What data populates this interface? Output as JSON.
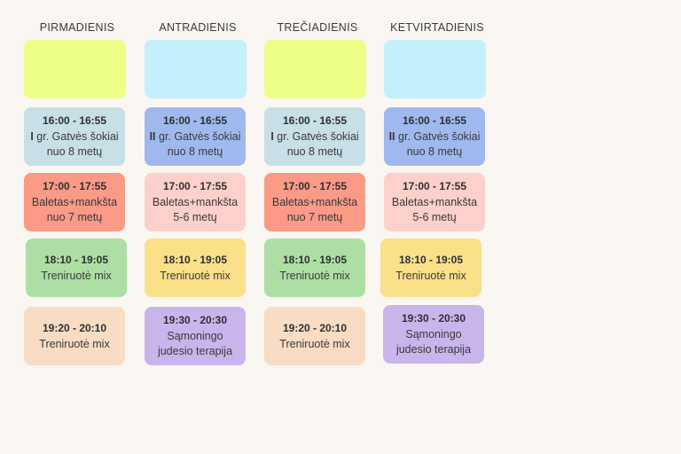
{
  "colors": {
    "yellow": "#eeff88",
    "cyan": "#c3f0fb",
    "light_blue": "#c7dfe6",
    "blue": "#9fb9ee",
    "salmon": "#fb9a87",
    "pink": "#fdd0cb",
    "green": "#addfa5",
    "gold": "#fbe08a",
    "peach": "#f8dcc3",
    "lavender": "#c9b5ec",
    "background": "#faf6f2"
  },
  "days": [
    {
      "name": "PIRMADIENIS",
      "header_color": "yellow",
      "classes": [
        {
          "time": "16:00 - 16:55",
          "roman": "I",
          "line1": " gr. Gatvės šokiai",
          "line2": "nuo 8 metų",
          "color": "light_blue"
        },
        {
          "time": "17:00 - 17:55",
          "roman": "",
          "line1": "Baletas+mankšta",
          "line2": "nuo 7 metų",
          "color": "salmon"
        },
        {
          "time": "18:10 - 19:05",
          "roman": "",
          "line1": "Treniruotė mix",
          "line2": "",
          "color": "green"
        },
        {
          "time": "19:20 - 20:10",
          "roman": "",
          "line1": "Treniruotė mix",
          "line2": "",
          "color": "peach"
        }
      ]
    },
    {
      "name": "ANTRADIENIS",
      "header_color": "cyan",
      "classes": [
        {
          "time": "16:00 - 16:55",
          "roman": "II",
          "line1": " gr. Gatvės šokiai",
          "line2": "nuo 8 metų",
          "color": "blue"
        },
        {
          "time": "17:00 - 17:55",
          "roman": "",
          "line1": "Baletas+mankšta",
          "line2": "5-6 metų",
          "color": "pink"
        },
        {
          "time": "18:10 - 19:05",
          "roman": "",
          "line1": "Treniruotė mix",
          "line2": "",
          "color": "gold"
        },
        {
          "time": "19:30 - 20:30",
          "roman": "",
          "line1": "Sąmoningo",
          "line2": "judesio terapija",
          "color": "lavender"
        }
      ]
    },
    {
      "name": "TREČIADIENIS",
      "header_color": "yellow",
      "classes": [
        {
          "time": "16:00 - 16:55",
          "roman": "I",
          "line1": " gr. Gatvės šokiai",
          "line2": "nuo 8 metų",
          "color": "light_blue"
        },
        {
          "time": "17:00 - 17:55",
          "roman": "",
          "line1": "Baletas+mankšta",
          "line2": "nuo 7 metų",
          "color": "salmon"
        },
        {
          "time": "18:10 - 19:05",
          "roman": "",
          "line1": "Treniruotė mix",
          "line2": "",
          "color": "green"
        },
        {
          "time": "19:20 - 20:10",
          "roman": "",
          "line1": "Treniruotė mix",
          "line2": "",
          "color": "peach"
        }
      ]
    },
    {
      "name": "KETVIRTADIENIS",
      "header_color": "cyan",
      "classes": [
        {
          "time": "16:00 - 16:55",
          "roman": "II",
          "line1": " gr. Gatvės šokiai",
          "line2": "nuo 8 metų",
          "color": "blue"
        },
        {
          "time": "17:00 - 17:55",
          "roman": "",
          "line1": "Baletas+mankšta",
          "line2": "5-6 metų",
          "color": "pink"
        },
        {
          "time": "18:10 - 19:05",
          "roman": "",
          "line1": "Treniruotė mix",
          "line2": "",
          "color": "gold"
        },
        {
          "time": "19:30 - 20:30",
          "roman": "",
          "line1": "Sąmoningo",
          "line2": "judesio terapija",
          "color": "lavender"
        }
      ]
    }
  ]
}
